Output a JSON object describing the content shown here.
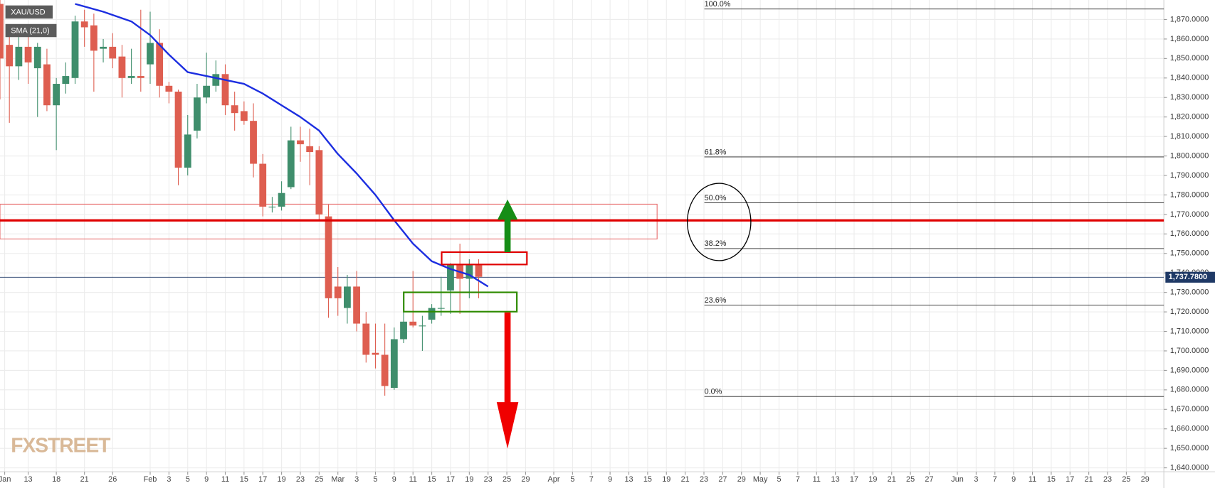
{
  "chart_data": {
    "type": "candlestick",
    "xlim": [
      -3,
      121
    ],
    "ylim": [
      1638,
      1880
    ],
    "grid": true,
    "series": [
      {
        "name": "XAU/USD",
        "type": "candlestick",
        "up_color": "#3f8e6c",
        "down_color": "#de5e50",
        "x": [
          -3,
          -2,
          -1,
          0,
          1,
          2,
          3,
          4,
          5,
          6,
          7,
          8,
          9,
          10,
          11,
          12,
          13,
          14,
          15,
          16,
          17,
          18,
          19,
          20,
          21,
          22,
          23,
          24,
          25,
          26,
          27,
          28,
          29,
          30,
          31,
          32,
          33,
          34,
          35,
          36,
          37,
          38,
          39,
          40,
          41,
          42,
          43,
          44,
          45,
          46,
          47,
          48
        ],
        "open": [
          1878,
          1857,
          1846,
          1856,
          1845,
          1847,
          1826,
          1837,
          1840,
          1869,
          1867,
          1855,
          1856,
          1851,
          1840,
          1841,
          1847,
          1858,
          1836,
          1833,
          1794,
          1813,
          1830,
          1836,
          1842,
          1826,
          1823,
          1818,
          1796,
          1774,
          1774,
          1784,
          1808,
          1805,
          1803,
          1769,
          1733,
          1722,
          1733,
          1714,
          1699,
          1698,
          1681,
          1706,
          1715,
          1713,
          1716,
          1722,
          1731,
          1744,
          1737,
          1744
        ],
        "high": [
          1885,
          1863,
          1861,
          1863,
          1858,
          1855,
          1840,
          1848,
          1872,
          1875,
          1873,
          1860,
          1863,
          1857,
          1855,
          1875,
          1874,
          1865,
          1838,
          1834,
          1821,
          1837,
          1853,
          1849,
          1847,
          1833,
          1828,
          1827,
          1801,
          1779,
          1787,
          1815,
          1815,
          1814,
          1805,
          1775,
          1743,
          1739,
          1741,
          1720,
          1714,
          1714,
          1712,
          1720,
          1741,
          1718,
          1724,
          1738,
          1745,
          1755,
          1747,
          1747
        ],
        "low": [
          1829,
          1817,
          1839,
          1837,
          1820,
          1823,
          1803,
          1832,
          1837,
          1856,
          1833,
          1848,
          1845,
          1830,
          1837,
          1833,
          1837,
          1830,
          1827,
          1785,
          1790,
          1809,
          1827,
          1833,
          1821,
          1813,
          1816,
          1789,
          1769,
          1771,
          1772,
          1783,
          1797,
          1785,
          1767,
          1717,
          1718,
          1714,
          1710,
          1694,
          1691,
          1677,
          1680,
          1704,
          1712,
          1700,
          1714,
          1718,
          1719,
          1719,
          1727,
          1727
        ],
        "close": [
          1850,
          1846,
          1856,
          1848,
          1856,
          1826,
          1837,
          1841,
          1869,
          1866,
          1854,
          1856,
          1850,
          1840,
          1841,
          1840,
          1858,
          1836,
          1833,
          1794,
          1811,
          1830,
          1836,
          1842,
          1826,
          1822,
          1818,
          1796,
          1774,
          1774,
          1781,
          1808,
          1806,
          1802,
          1770,
          1727,
          1727,
          1733,
          1714,
          1698,
          1698,
          1682,
          1706,
          1715,
          1713,
          1713,
          1722,
          1722,
          1744,
          1737,
          1744,
          1738
        ]
      },
      {
        "name": "SMA (21,0)",
        "type": "line",
        "color": "#1c2ee0",
        "x": [
          5,
          8,
          11,
          13,
          15,
          17,
          19,
          21,
          23,
          25,
          27,
          29,
          31,
          33,
          35,
          37,
          39,
          41,
          43,
          45,
          47,
          49
        ],
        "values": [
          1878,
          1874,
          1869,
          1862,
          1852,
          1843,
          1841,
          1839,
          1837,
          1832,
          1826,
          1820,
          1813,
          1801,
          1791,
          1780,
          1767,
          1755,
          1746,
          1742,
          1739,
          1733
        ]
      }
    ],
    "yticks": [
      {
        "value": 1640,
        "label": "1,640.0000"
      },
      {
        "value": 1650,
        "label": "1,650.0000"
      },
      {
        "value": 1660,
        "label": "1,660.0000"
      },
      {
        "value": 1670,
        "label": "1,670.0000"
      },
      {
        "value": 1680,
        "label": "1,680.0000"
      },
      {
        "value": 1690,
        "label": "1,690.0000"
      },
      {
        "value": 1700,
        "label": "1,700.0000"
      },
      {
        "value": 1710,
        "label": "1,710.0000"
      },
      {
        "value": 1720,
        "label": "1,720.0000"
      },
      {
        "value": 1730,
        "label": "1,730.0000"
      },
      {
        "value": 1740,
        "label": "1,740.0000"
      },
      {
        "value": 1750,
        "label": "1,750.0000"
      },
      {
        "value": 1760,
        "label": "1,760.0000"
      },
      {
        "value": 1770,
        "label": "1,770.0000"
      },
      {
        "value": 1780,
        "label": "1,780.0000"
      },
      {
        "value": 1790,
        "label": "1,790.0000"
      },
      {
        "value": 1800,
        "label": "1,800.0000"
      },
      {
        "value": 1810,
        "label": "1,810.0000"
      },
      {
        "value": 1820,
        "label": "1,820.0000"
      },
      {
        "value": 1830,
        "label": "1,830.0000"
      },
      {
        "value": 1840,
        "label": "1,840.0000"
      },
      {
        "value": 1850,
        "label": "1,850.0000"
      },
      {
        "value": 1860,
        "label": "1,860.0000"
      },
      {
        "value": 1870,
        "label": "1,870.0000"
      }
    ],
    "xticks": [
      {
        "value": -2.5,
        "label": "Jan"
      },
      {
        "value": 0,
        "label": "13"
      },
      {
        "value": 3,
        "label": "18"
      },
      {
        "value": 6,
        "label": "21"
      },
      {
        "value": 9,
        "label": "26"
      },
      {
        "value": 13,
        "label": "Feb"
      },
      {
        "value": 15,
        "label": "3"
      },
      {
        "value": 17,
        "label": "5"
      },
      {
        "value": 19,
        "label": "9"
      },
      {
        "value": 21,
        "label": "11"
      },
      {
        "value": 23,
        "label": "15"
      },
      {
        "value": 25,
        "label": "17"
      },
      {
        "value": 27,
        "label": "19"
      },
      {
        "value": 29,
        "label": "23"
      },
      {
        "value": 31,
        "label": "25"
      },
      {
        "value": 33,
        "label": "Mar"
      },
      {
        "value": 35,
        "label": "3"
      },
      {
        "value": 37,
        "label": "5"
      },
      {
        "value": 39,
        "label": "9"
      },
      {
        "value": 41,
        "label": "11"
      },
      {
        "value": 43,
        "label": "15"
      },
      {
        "value": 45,
        "label": "17"
      },
      {
        "value": 47,
        "label": "19"
      },
      {
        "value": 49,
        "label": "23"
      },
      {
        "value": 51,
        "label": "25"
      },
      {
        "value": 53,
        "label": "29"
      },
      {
        "value": 56,
        "label": "Apr"
      },
      {
        "value": 58,
        "label": "5"
      },
      {
        "value": 60,
        "label": "7"
      },
      {
        "value": 62,
        "label": "9"
      },
      {
        "value": 64,
        "label": "13"
      },
      {
        "value": 66,
        "label": "15"
      },
      {
        "value": 68,
        "label": "19"
      },
      {
        "value": 70,
        "label": "21"
      },
      {
        "value": 72,
        "label": "23"
      },
      {
        "value": 74,
        "label": "27"
      },
      {
        "value": 76,
        "label": "29"
      },
      {
        "value": 78,
        "label": "May"
      },
      {
        "value": 80,
        "label": "5"
      },
      {
        "value": 82,
        "label": "7"
      },
      {
        "value": 84,
        "label": "11"
      },
      {
        "value": 86,
        "label": "13"
      },
      {
        "value": 88,
        "label": "17"
      },
      {
        "value": 90,
        "label": "19"
      },
      {
        "value": 92,
        "label": "21"
      },
      {
        "value": 94,
        "label": "25"
      },
      {
        "value": 96,
        "label": "27"
      },
      {
        "value": 99,
        "label": "Jun"
      },
      {
        "value": 101,
        "label": "3"
      },
      {
        "value": 103,
        "label": "7"
      },
      {
        "value": 105,
        "label": "9"
      },
      {
        "value": 107,
        "label": "11"
      },
      {
        "value": 109,
        "label": "15"
      },
      {
        "value": 111,
        "label": "17"
      },
      {
        "value": 113,
        "label": "21"
      },
      {
        "value": 115,
        "label": "23"
      },
      {
        "value": 117,
        "label": "25"
      },
      {
        "value": 119,
        "label": "29"
      }
    ],
    "last_price": {
      "value": 1737.78,
      "label": "1,737.7800",
      "color": "#1f3966"
    },
    "fibonacci": [
      {
        "value": 1875.4,
        "label": "100.0%"
      },
      {
        "value": 1799.5,
        "label": "61.8%"
      },
      {
        "value": 1776,
        "label": "50.0%"
      },
      {
        "value": 1752.5,
        "label": "38.2%"
      },
      {
        "value": 1723.5,
        "label": "23.6%"
      },
      {
        "value": 1676.6,
        "label": "0.0%"
      }
    ],
    "watermark": "FXSTREET"
  }
}
